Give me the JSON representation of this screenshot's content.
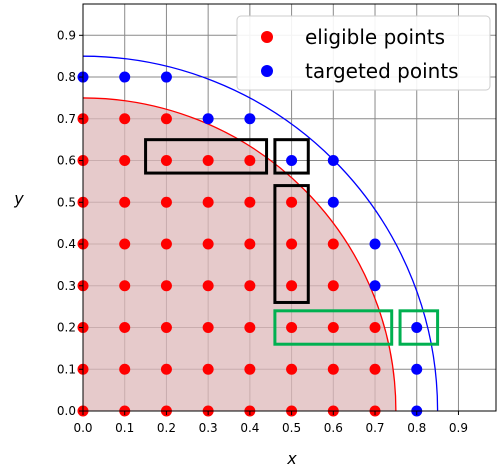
{
  "chart_data": {
    "type": "scatter",
    "xlabel": "x",
    "ylabel": "y",
    "xlim": [
      0.0,
      0.99
    ],
    "ylim": [
      0.0,
      0.975
    ],
    "grid": true,
    "legend_placement": "top-right",
    "x_ticks": [
      "0.0",
      "0.1",
      "0.2",
      "0.3",
      "0.4",
      "0.5",
      "0.6",
      "0.7",
      "0.8",
      "0.9"
    ],
    "y_ticks": [
      "0.0",
      "0.1",
      "0.2",
      "0.3",
      "0.4",
      "0.5",
      "0.6",
      "0.7",
      "0.8",
      "0.9"
    ],
    "series": [
      {
        "name": "eligible points",
        "color": "#ff0000",
        "points": [
          [
            0.0,
            0.0
          ],
          [
            0.1,
            0.0
          ],
          [
            0.2,
            0.0
          ],
          [
            0.3,
            0.0
          ],
          [
            0.4,
            0.0
          ],
          [
            0.5,
            0.0
          ],
          [
            0.6,
            0.0
          ],
          [
            0.7,
            0.0
          ],
          [
            0.0,
            0.1
          ],
          [
            0.1,
            0.1
          ],
          [
            0.2,
            0.1
          ],
          [
            0.3,
            0.1
          ],
          [
            0.4,
            0.1
          ],
          [
            0.5,
            0.1
          ],
          [
            0.6,
            0.1
          ],
          [
            0.7,
            0.1
          ],
          [
            0.0,
            0.2
          ],
          [
            0.1,
            0.2
          ],
          [
            0.2,
            0.2
          ],
          [
            0.3,
            0.2
          ],
          [
            0.4,
            0.2
          ],
          [
            0.5,
            0.2
          ],
          [
            0.6,
            0.2
          ],
          [
            0.7,
            0.2
          ],
          [
            0.0,
            0.3
          ],
          [
            0.1,
            0.3
          ],
          [
            0.2,
            0.3
          ],
          [
            0.3,
            0.3
          ],
          [
            0.4,
            0.3
          ],
          [
            0.5,
            0.3
          ],
          [
            0.6,
            0.3
          ],
          [
            0.0,
            0.4
          ],
          [
            0.1,
            0.4
          ],
          [
            0.2,
            0.4
          ],
          [
            0.3,
            0.4
          ],
          [
            0.4,
            0.4
          ],
          [
            0.5,
            0.4
          ],
          [
            0.6,
            0.4
          ],
          [
            0.0,
            0.5
          ],
          [
            0.1,
            0.5
          ],
          [
            0.2,
            0.5
          ],
          [
            0.3,
            0.5
          ],
          [
            0.4,
            0.5
          ],
          [
            0.5,
            0.5
          ],
          [
            0.0,
            0.6
          ],
          [
            0.1,
            0.6
          ],
          [
            0.2,
            0.6
          ],
          [
            0.3,
            0.6
          ],
          [
            0.4,
            0.6
          ],
          [
            0.0,
            0.7
          ],
          [
            0.1,
            0.7
          ],
          [
            0.2,
            0.7
          ]
        ]
      },
      {
        "name": "targeted points",
        "color": "#0000ff",
        "points": [
          [
            0.8,
            0.0
          ],
          [
            0.8,
            0.1
          ],
          [
            0.8,
            0.2
          ],
          [
            0.7,
            0.3
          ],
          [
            0.7,
            0.4
          ],
          [
            0.6,
            0.5
          ],
          [
            0.6,
            0.6
          ],
          [
            0.5,
            0.6
          ],
          [
            0.4,
            0.7
          ],
          [
            0.3,
            0.7
          ],
          [
            0.2,
            0.8
          ],
          [
            0.1,
            0.8
          ],
          [
            0.0,
            0.8
          ]
        ]
      }
    ],
    "arcs": [
      {
        "radius": 0.75,
        "color": "#ff0000",
        "filled": true,
        "fill_color": "#ddb8ba"
      },
      {
        "radius": 0.85,
        "color": "#0000ff",
        "filled": false
      }
    ],
    "boxes": [
      {
        "color": "#000000",
        "x_range": [
          0.15,
          0.44
        ],
        "y_range": [
          0.57,
          0.65
        ]
      },
      {
        "color": "#000000",
        "x_range": [
          0.46,
          0.54
        ],
        "y_range": [
          0.57,
          0.65
        ]
      },
      {
        "color": "#000000",
        "x_range": [
          0.46,
          0.54
        ],
        "y_range": [
          0.26,
          0.54
        ]
      },
      {
        "color": "#00b050",
        "x_range": [
          0.46,
          0.74
        ],
        "y_range": [
          0.16,
          0.24
        ]
      },
      {
        "color": "#00b050",
        "x_range": [
          0.76,
          0.85
        ],
        "y_range": [
          0.16,
          0.24
        ]
      }
    ]
  }
}
